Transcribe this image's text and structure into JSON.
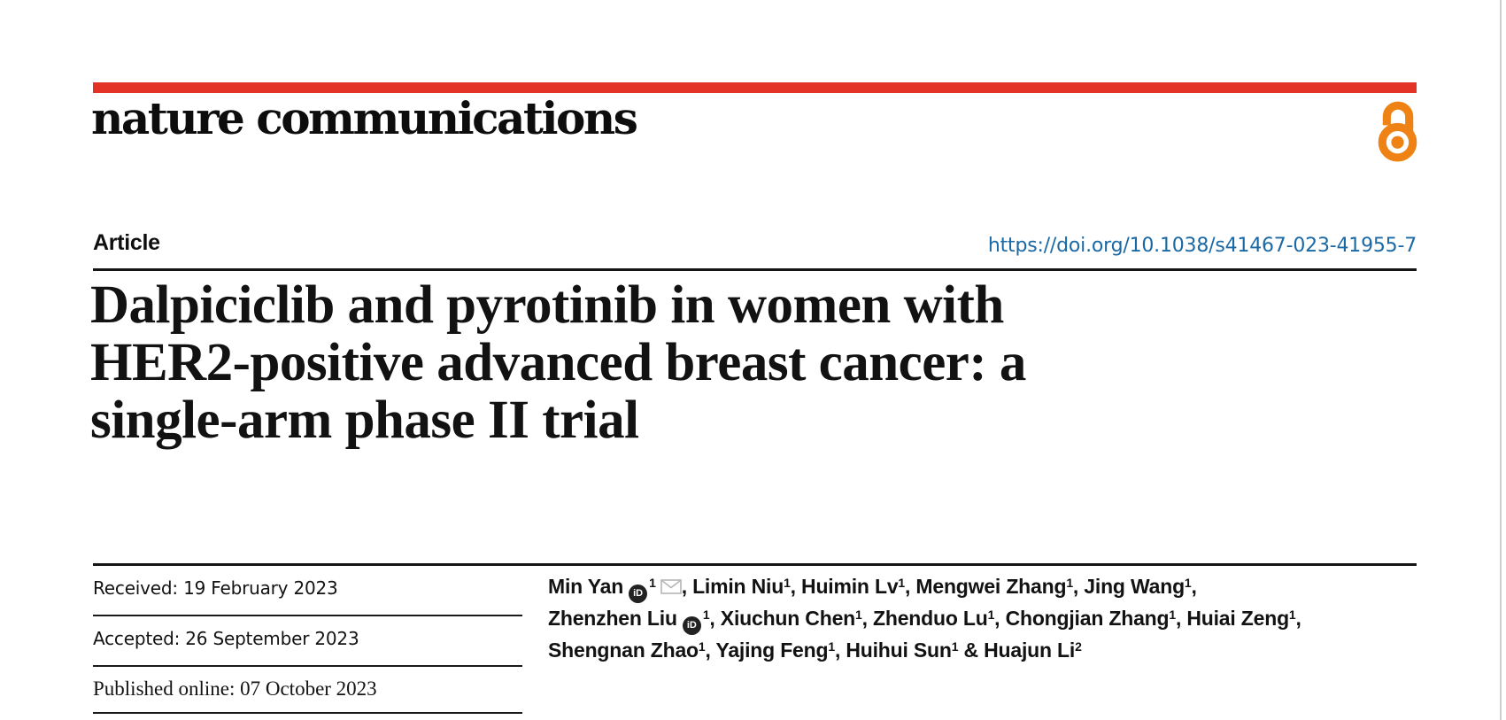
{
  "journal": {
    "name": "nature communications",
    "accent_red": "#e23326",
    "open_access_orange": "#ef8214"
  },
  "article": {
    "type_label": "Article",
    "doi": "https://doi.org/10.1038/s41467-023-41955-7",
    "title_lines": [
      "Dalpiciclib and pyrotinib in women with",
      "HER2-positive advanced breast cancer: a",
      "single-arm phase II trial"
    ],
    "link_color": "#1a69a5"
  },
  "dates": {
    "received": "Received: 19 February 2023",
    "accepted": "Accepted: 26 September 2023",
    "published": "Published online: 07 October 2023"
  },
  "authors": {
    "orcid_icon_label": "iD",
    "lines": [
      [
        {
          "name": "Min Yan",
          "orcid": true,
          "sup": "1",
          "email": true,
          "sep": ", "
        },
        {
          "name": "Limin Niu",
          "sup": "1",
          "sep": ", "
        },
        {
          "name": "Huimin Lv",
          "sup": "1",
          "sep": ", "
        },
        {
          "name": "Mengwei Zhang",
          "sup": "1",
          "sep": ", "
        },
        {
          "name": "Jing Wang",
          "sup": "1",
          "sep": ","
        }
      ],
      [
        {
          "name": "Zhenzhen Liu",
          "orcid": true,
          "sup": "1",
          "sep": ", "
        },
        {
          "name": "Xiuchun Chen",
          "sup": "1",
          "sep": ", "
        },
        {
          "name": "Zhenduo Lu",
          "sup": "1",
          "sep": ", "
        },
        {
          "name": "Chongjian Zhang",
          "sup": "1",
          "sep": ", "
        },
        {
          "name": "Huiai Zeng",
          "sup": "1",
          "sep": ","
        }
      ],
      [
        {
          "name": "Shengnan Zhao",
          "sup": "1",
          "sep": ", "
        },
        {
          "name": "Yajing Feng",
          "sup": "1",
          "sep": ", "
        },
        {
          "name": "Huihui Sun",
          "sup": "1",
          "sep": " & "
        },
        {
          "name": "Huajun Li",
          "sup": "2",
          "sep": ""
        }
      ]
    ]
  }
}
